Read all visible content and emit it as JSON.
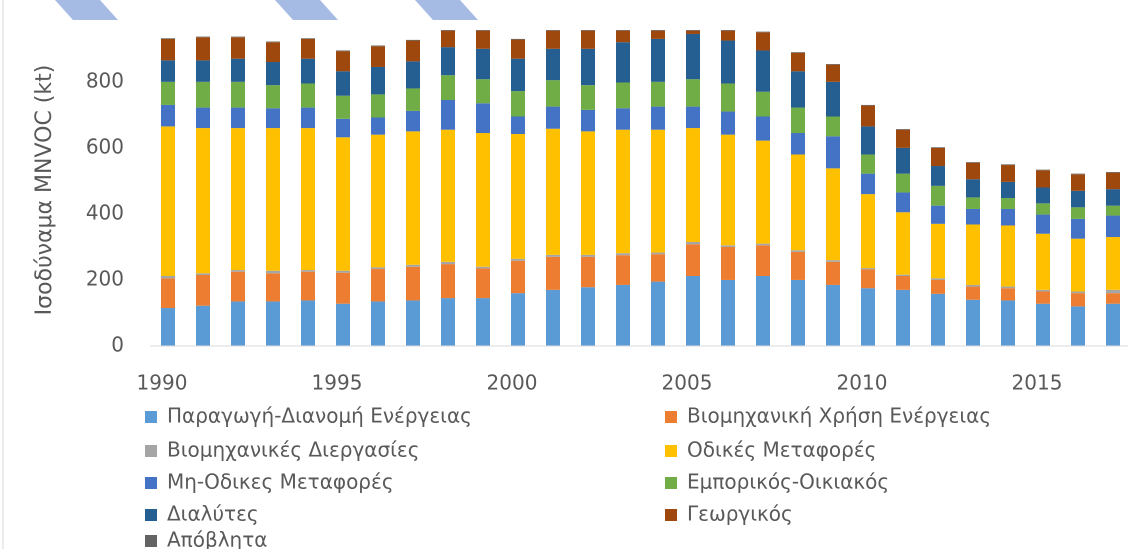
{
  "chart_data": {
    "type": "stacked-bar",
    "y_label": "Ισοδύναμα MNVOC (kt)",
    "categories": [
      "1990",
      null,
      null,
      null,
      null,
      "1995",
      null,
      null,
      null,
      null,
      "2000",
      null,
      null,
      null,
      null,
      "2005",
      null,
      null,
      null,
      null,
      "2010",
      null,
      null,
      null,
      null,
      "2015",
      null,
      null
    ],
    "ylim": [
      0,
      960
    ],
    "yticks": [
      0,
      200,
      400,
      600,
      800
    ],
    "series": [
      {
        "name": "Παραγωγή-Διανομή Ενέργειας",
        "color": "#5b9bd5",
        "values": [
          115,
          122,
          135,
          135,
          138,
          128,
          135,
          138,
          145,
          145,
          160,
          170,
          178,
          185,
          195,
          212,
          200,
          212,
          200,
          185,
          175,
          170,
          158,
          140,
          138,
          128,
          120,
          128
        ]
      },
      {
        "name": "Βιομηχανική Χρήση Ενέργειας",
        "color": "#ed7d31",
        "values": [
          90,
          93,
          90,
          85,
          87,
          94,
          98,
          102,
          103,
          90,
          98,
          100,
          92,
          90,
          83,
          96,
          100,
          93,
          85,
          70,
          57,
          42,
          42,
          40,
          37,
          37,
          40,
          32
        ]
      },
      {
        "name": "Βιομηχανικές Διεργασίες",
        "color": "#a5a5a5",
        "values": [
          7,
          5,
          5,
          8,
          5,
          6,
          5,
          6,
          7,
          5,
          6,
          6,
          6,
          6,
          5,
          7,
          5,
          5,
          5,
          5,
          4,
          4,
          5,
          5,
          5,
          5,
          5,
          10
        ]
      },
      {
        "name": "Οδικές Μεταφορές",
        "color": "#ffc000",
        "values": [
          453,
          440,
          430,
          432,
          430,
          404,
          402,
          404,
          400,
          405,
          378,
          382,
          374,
          374,
          372,
          345,
          335,
          312,
          290,
          278,
          224,
          189,
          165,
          183,
          185,
          170,
          160,
          160
        ]
      },
      {
        "name": "Μη-Οδικες Μεταφορές",
        "color": "#4472c4",
        "values": [
          65,
          62,
          62,
          60,
          62,
          56,
          52,
          62,
          90,
          90,
          53,
          67,
          65,
          65,
          70,
          65,
          70,
          73,
          65,
          97,
          62,
          60,
          55,
          47,
          50,
          58,
          60,
          65
        ]
      },
      {
        "name": "Εμπορικός-Οικιακός",
        "color": "#70ad47",
        "values": [
          70,
          78,
          78,
          70,
          73,
          70,
          70,
          68,
          75,
          73,
          77,
          80,
          75,
          78,
          75,
          83,
          85,
          75,
          77,
          60,
          58,
          57,
          60,
          35,
          33,
          34,
          35,
          30
        ]
      },
      {
        "name": "Διαλύτες",
        "color": "#255e91",
        "values": [
          65,
          65,
          70,
          70,
          75,
          74,
          83,
          82,
          85,
          92,
          98,
          95,
          110,
          122,
          130,
          137,
          130,
          125,
          110,
          105,
          85,
          78,
          60,
          55,
          49,
          48,
          50,
          50
        ]
      },
      {
        "name": "Γεωργικός",
        "color": "#9e480e",
        "values": [
          65,
          70,
          65,
          60,
          60,
          61,
          63,
          63,
          50,
          55,
          58,
          55,
          55,
          35,
          25,
          10,
          30,
          55,
          56,
          52,
          63,
          55,
          55,
          50,
          51,
          52,
          50,
          50
        ]
      },
      {
        "name": "Απόβλητα",
        "color": "#636363",
        "values": [
          2,
          2,
          2,
          2,
          2,
          2,
          2,
          2,
          2,
          2,
          2,
          2,
          2,
          2,
          2,
          2,
          2,
          2,
          2,
          2,
          2,
          2,
          2,
          2,
          2,
          2,
          2,
          2
        ]
      }
    ]
  }
}
